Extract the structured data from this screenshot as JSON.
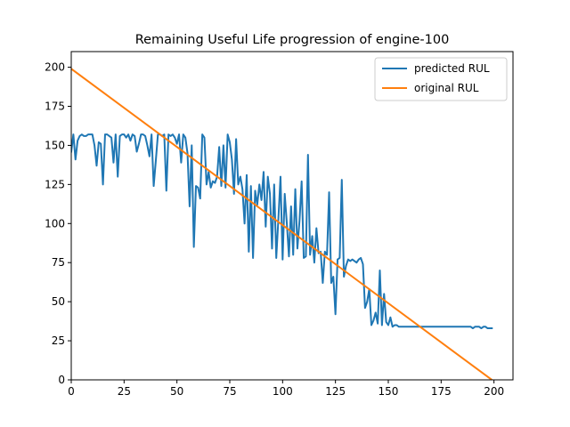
{
  "chart_data": {
    "type": "line",
    "title": "Remaining Useful Life progression of engine-100",
    "xlabel": "",
    "ylabel": "",
    "xlim": [
      0,
      209
    ],
    "ylim": [
      0,
      210
    ],
    "xticks": [
      0,
      25,
      50,
      75,
      100,
      125,
      150,
      175,
      200
    ],
    "yticks": [
      0,
      25,
      50,
      75,
      100,
      125,
      150,
      175,
      200
    ],
    "grid": false,
    "legend_position": "top-right",
    "series": [
      {
        "name": "predicted RUL",
        "color": "#1f77b4",
        "x": [
          0,
          1,
          2,
          3,
          4,
          5,
          6,
          7,
          8,
          9,
          10,
          11,
          12,
          13,
          14,
          15,
          16,
          17,
          18,
          19,
          20,
          21,
          22,
          23,
          24,
          25,
          26,
          27,
          28,
          29,
          30,
          31,
          32,
          33,
          34,
          35,
          36,
          37,
          38,
          39,
          40,
          41,
          42,
          43,
          44,
          45,
          46,
          47,
          48,
          49,
          50,
          51,
          52,
          53,
          54,
          55,
          56,
          57,
          58,
          59,
          60,
          61,
          62,
          63,
          64,
          65,
          66,
          67,
          68,
          69,
          70,
          71,
          72,
          73,
          74,
          75,
          76,
          77,
          78,
          79,
          80,
          81,
          82,
          83,
          84,
          85,
          86,
          87,
          88,
          89,
          90,
          91,
          92,
          93,
          94,
          95,
          96,
          97,
          98,
          99,
          100,
          101,
          102,
          103,
          104,
          105,
          106,
          107,
          108,
          109,
          110,
          111,
          112,
          113,
          114,
          115,
          116,
          117,
          118,
          119,
          120,
          121,
          122,
          123,
          124,
          125,
          126,
          127,
          128,
          129,
          130,
          131,
          132,
          133,
          134,
          135,
          136,
          137,
          138,
          139,
          140,
          141,
          142,
          143,
          144,
          145,
          146,
          147,
          148,
          149,
          150,
          151,
          152,
          153,
          154,
          155,
          156,
          160,
          170,
          180,
          189,
          190,
          191,
          192,
          193,
          194,
          195,
          196,
          197,
          198,
          199
        ],
        "y": [
          146,
          157,
          141,
          153,
          156,
          157,
          156,
          156,
          157,
          157,
          157,
          150,
          137,
          152,
          151,
          125,
          157,
          157,
          156,
          155,
          139,
          157,
          130,
          156,
          157,
          157,
          155,
          157,
          153,
          157,
          156,
          146,
          151,
          157,
          157,
          156,
          150,
          143,
          157,
          124,
          140,
          157,
          157,
          156,
          157,
          121,
          157,
          156,
          157,
          155,
          151,
          157,
          139,
          157,
          155,
          145,
          111,
          150,
          85,
          124,
          123,
          116,
          157,
          155,
          125,
          133,
          123,
          127,
          126,
          130,
          149,
          124,
          150,
          123,
          157,
          152,
          141,
          119,
          154,
          125,
          130,
          122,
          100,
          131,
          82,
          124,
          78,
          121,
          112,
          125,
          115,
          133,
          98,
          130,
          119,
          84,
          125,
          78,
          103,
          130,
          77,
          119,
          100,
          79,
          111,
          80,
          122,
          84,
          102,
          127,
          78,
          79,
          144,
          80,
          92,
          75,
          97,
          81,
          82,
          62,
          82,
          80,
          120,
          62,
          66,
          42,
          77,
          78,
          128,
          66,
          73,
          77,
          76,
          77,
          76,
          75,
          77,
          78,
          74,
          46,
          50,
          58,
          35,
          38,
          43,
          36,
          70,
          35,
          55,
          37,
          35,
          40,
          34,
          35,
          35,
          34,
          34,
          34,
          34,
          34,
          34,
          33,
          34,
          34,
          34,
          33,
          34,
          34,
          33,
          33,
          33
        ]
      },
      {
        "name": "original RUL",
        "color": "#ff7f0e",
        "x": [
          0,
          199
        ],
        "y": [
          199,
          0
        ]
      }
    ]
  }
}
